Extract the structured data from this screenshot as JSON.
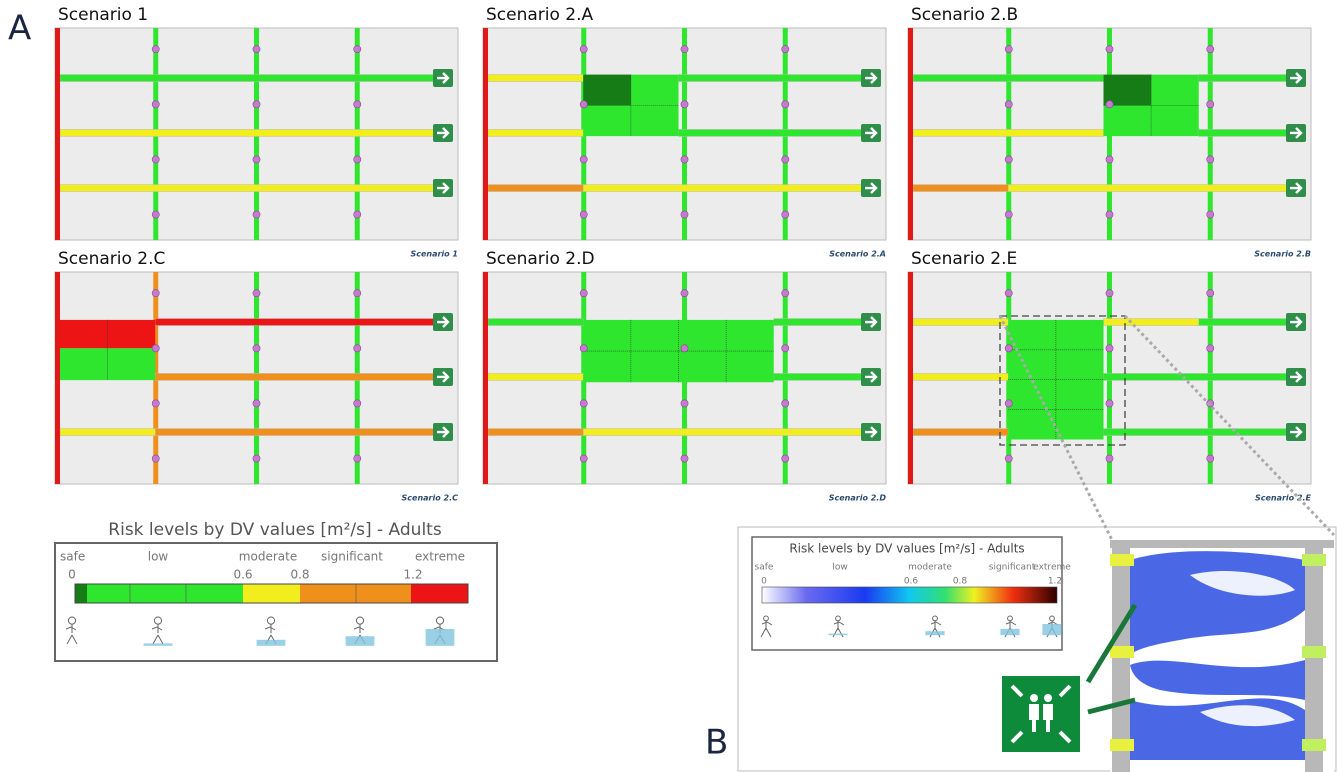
{
  "figure_label_a": "A",
  "figure_label_b": "B",
  "panels": [
    {
      "title": "Scenario 1",
      "caption": "Scenario 1"
    },
    {
      "title": "Scenario 2.A",
      "caption": "Scenario 2.A"
    },
    {
      "title": "Scenario 2.B",
      "caption": "Scenario 2.B"
    },
    {
      "title": "Scenario 2.C",
      "caption": "Scenario 2.C"
    },
    {
      "title": "Scenario 2.D",
      "caption": "Scenario 2.D"
    },
    {
      "title": "Scenario 2.E",
      "caption": "Scenario 2.E"
    }
  ],
  "legend_a": {
    "title": "Risk levels by DV values [m²/s] - Adults",
    "levels": [
      "safe",
      "low",
      "moderate",
      "significant",
      "extreme"
    ],
    "ticks": [
      "0",
      "0.6",
      "0.8",
      "1.2"
    ]
  },
  "legend_b": {
    "title": "Risk levels by DV values [m²/s] - Adults",
    "levels": [
      "safe",
      "low",
      "moderate",
      "significant",
      "extreme"
    ],
    "ticks": [
      "0",
      "0.6",
      "0.8",
      "1.2"
    ]
  }
}
